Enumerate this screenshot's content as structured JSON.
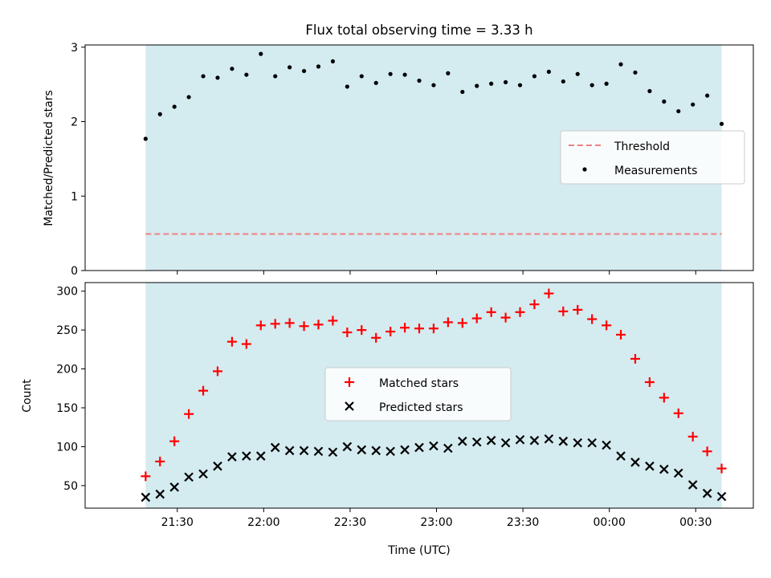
{
  "chart_data": [
    {
      "type": "scatter",
      "title": "Flux total observing time = 3.33 h",
      "xlabel": "",
      "ylabel": "Matched/Predicted stars",
      "ylim": [
        0,
        3.03
      ],
      "yticks": [
        0,
        1,
        2,
        3
      ],
      "ytick_labels": [
        "0",
        "1",
        "2",
        "3"
      ],
      "threshold": {
        "name": "Threshold",
        "value": 0.49,
        "color": "#f08080"
      },
      "shaded_color": "#d4ebf0",
      "legend_position": "center-right",
      "series": [
        {
          "name": "Measurements",
          "color": "#000000",
          "points": [
            [
              "21:19",
              1.77
            ],
            [
              "21:24",
              2.1
            ],
            [
              "21:29",
              2.2
            ],
            [
              "21:34",
              2.33
            ],
            [
              "21:39",
              2.61
            ],
            [
              "21:44",
              2.59
            ],
            [
              "21:49",
              2.71
            ],
            [
              "21:54",
              2.63
            ],
            [
              "21:59",
              2.91
            ],
            [
              "22:04",
              2.61
            ],
            [
              "22:09",
              2.73
            ],
            [
              "22:14",
              2.68
            ],
            [
              "22:19",
              2.74
            ],
            [
              "22:24",
              2.81
            ],
            [
              "22:29",
              2.47
            ],
            [
              "22:34",
              2.61
            ],
            [
              "22:39",
              2.52
            ],
            [
              "22:44",
              2.64
            ],
            [
              "22:49",
              2.63
            ],
            [
              "22:54",
              2.55
            ],
            [
              "22:59",
              2.49
            ],
            [
              "23:04",
              2.65
            ],
            [
              "23:09",
              2.4
            ],
            [
              "23:14",
              2.48
            ],
            [
              "23:19",
              2.51
            ],
            [
              "23:24",
              2.53
            ],
            [
              "23:29",
              2.49
            ],
            [
              "23:34",
              2.61
            ],
            [
              "23:39",
              2.67
            ],
            [
              "23:44",
              2.54
            ],
            [
              "23:49",
              2.64
            ],
            [
              "23:54",
              2.49
            ],
            [
              "23:59",
              2.51
            ],
            [
              "00:04",
              2.77
            ],
            [
              "00:09",
              2.66
            ],
            [
              "00:14",
              2.41
            ],
            [
              "00:19",
              2.27
            ],
            [
              "00:24",
              2.14
            ],
            [
              "00:29",
              2.23
            ],
            [
              "00:34",
              2.35
            ],
            [
              "00:39",
              1.97
            ]
          ]
        }
      ]
    },
    {
      "type": "scatter",
      "title": "",
      "xlabel": "Time (UTC)",
      "ylabel": "Count",
      "ylim": [
        21,
        311
      ],
      "yticks": [
        50,
        100,
        150,
        200,
        250,
        300
      ],
      "ytick_labels": [
        "50",
        "100",
        "150",
        "200",
        "250",
        "300"
      ],
      "xticks": [
        "21:30",
        "22:00",
        "22:30",
        "23:00",
        "23:30",
        "00:00",
        "00:30"
      ],
      "shaded_color": "#d4ebf0",
      "legend_position": "center",
      "series": [
        {
          "name": "Matched stars",
          "color": "#ff0000",
          "marker": "plus",
          "points": [
            [
              "21:19",
              62
            ],
            [
              "21:24",
              81
            ],
            [
              "21:29",
              107
            ],
            [
              "21:34",
              142
            ],
            [
              "21:39",
              172
            ],
            [
              "21:44",
              197
            ],
            [
              "21:49",
              235
            ],
            [
              "21:54",
              232
            ],
            [
              "21:59",
              256
            ],
            [
              "22:04",
              258
            ],
            [
              "22:09",
              259
            ],
            [
              "22:14",
              255
            ],
            [
              "22:19",
              257
            ],
            [
              "22:24",
              262
            ],
            [
              "22:29",
              247
            ],
            [
              "22:34",
              250
            ],
            [
              "22:39",
              240
            ],
            [
              "22:44",
              248
            ],
            [
              "22:49",
              253
            ],
            [
              "22:54",
              252
            ],
            [
              "22:59",
              252
            ],
            [
              "23:04",
              260
            ],
            [
              "23:09",
              259
            ],
            [
              "23:14",
              265
            ],
            [
              "23:19",
              273
            ],
            [
              "23:24",
              266
            ],
            [
              "23:29",
              273
            ],
            [
              "23:34",
              283
            ],
            [
              "23:39",
              297
            ],
            [
              "23:44",
              274
            ],
            [
              "23:49",
              276
            ],
            [
              "23:54",
              264
            ],
            [
              "23:59",
              256
            ],
            [
              "00:04",
              244
            ],
            [
              "00:09",
              213
            ],
            [
              "00:14",
              183
            ],
            [
              "00:19",
              163
            ],
            [
              "00:24",
              143
            ],
            [
              "00:29",
              113
            ],
            [
              "00:34",
              94
            ],
            [
              "00:39",
              72
            ]
          ]
        },
        {
          "name": "Predicted stars",
          "color": "#000000",
          "marker": "x",
          "points": [
            [
              "21:19",
              35
            ],
            [
              "21:24",
              39
            ],
            [
              "21:29",
              48
            ],
            [
              "21:34",
              61
            ],
            [
              "21:39",
              65
            ],
            [
              "21:44",
              75
            ],
            [
              "21:49",
              87
            ],
            [
              "21:54",
              88
            ],
            [
              "21:59",
              88
            ],
            [
              "22:04",
              99
            ],
            [
              "22:09",
              95
            ],
            [
              "22:14",
              95
            ],
            [
              "22:19",
              94
            ],
            [
              "22:24",
              93
            ],
            [
              "22:29",
              100
            ],
            [
              "22:34",
              96
            ],
            [
              "22:39",
              95
            ],
            [
              "22:44",
              94
            ],
            [
              "22:49",
              96
            ],
            [
              "22:54",
              99
            ],
            [
              "22:59",
              101
            ],
            [
              "23:04",
              98
            ],
            [
              "23:09",
              107
            ],
            [
              "23:14",
              106
            ],
            [
              "23:19",
              108
            ],
            [
              "23:24",
              105
            ],
            [
              "23:29",
              109
            ],
            [
              "23:34",
              108
            ],
            [
              "23:39",
              110
            ],
            [
              "23:44",
              107
            ],
            [
              "23:49",
              105
            ],
            [
              "23:54",
              105
            ],
            [
              "23:59",
              102
            ],
            [
              "00:04",
              88
            ],
            [
              "00:09",
              80
            ],
            [
              "00:14",
              75
            ],
            [
              "00:19",
              71
            ],
            [
              "00:24",
              66
            ],
            [
              "00:29",
              51
            ],
            [
              "00:34",
              40
            ],
            [
              "00:39",
              36
            ]
          ]
        }
      ]
    }
  ]
}
